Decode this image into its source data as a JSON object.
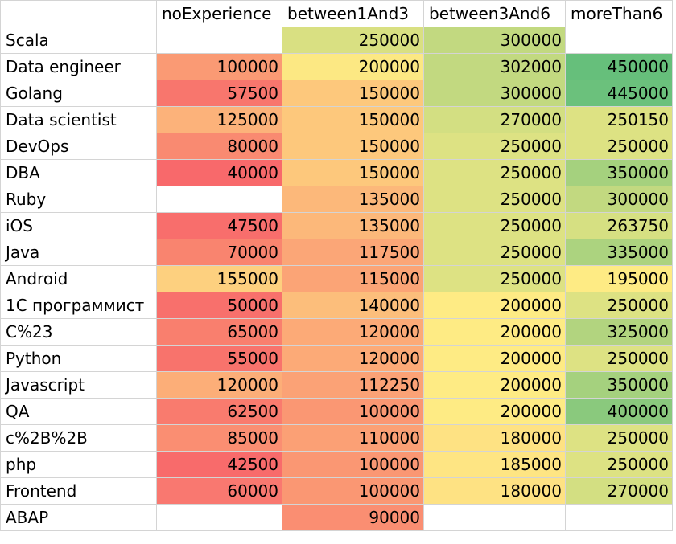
{
  "headers": [
    "",
    "noExperience",
    "between1And3",
    "between3And6",
    "moreThan6"
  ],
  "rows": [
    {
      "label": "Scala",
      "values": [
        "",
        "250000",
        "300000",
        ""
      ],
      "colors": [
        "#ffffff",
        "#d9e082",
        "#c2d980",
        "#ffffff"
      ]
    },
    {
      "label": "Data engineer",
      "values": [
        "100000",
        "200000",
        "302000",
        "450000"
      ],
      "colors": [
        "#fa9a74",
        "#fce883",
        "#c2d980",
        "#66bf7b"
      ]
    },
    {
      "label": "Golang",
      "values": [
        "57500",
        "150000",
        "300000",
        "445000"
      ],
      "colors": [
        "#f8766d",
        "#fdc87c",
        "#c2d980",
        "#6bc17c"
      ]
    },
    {
      "label": "Data scientist",
      "values": [
        "125000",
        "150000",
        "270000",
        "250150"
      ],
      "colors": [
        "#fcb27a",
        "#fdc87c",
        "#d3df82",
        "#dde283"
      ]
    },
    {
      "label": "DevOps",
      "values": [
        "80000",
        "150000",
        "250000",
        "250000"
      ],
      "colors": [
        "#f98a71",
        "#fdc87c",
        "#dde283",
        "#dde283"
      ]
    },
    {
      "label": "DBA",
      "values": [
        "40000",
        "150000",
        "250000",
        "350000"
      ],
      "colors": [
        "#f8696b",
        "#fdc87c",
        "#dde283",
        "#a5d17e"
      ]
    },
    {
      "label": "Ruby",
      "values": [
        "",
        "135000",
        "250000",
        "300000"
      ],
      "colors": [
        "#ffffff",
        "#fcb87a",
        "#dde283",
        "#c2d980"
      ]
    },
    {
      "label": "iOS",
      "values": [
        "47500",
        "135000",
        "250000",
        "263750"
      ],
      "colors": [
        "#f86e6c",
        "#fcb87a",
        "#dde283",
        "#d6e082"
      ]
    },
    {
      "label": "Java",
      "values": [
        "70000",
        "117500",
        "250000",
        "335000"
      ],
      "colors": [
        "#f9846f",
        "#fba677",
        "#dde283",
        "#acd37f"
      ]
    },
    {
      "label": "Android",
      "values": [
        "155000",
        "115000",
        "250000",
        "195000"
      ],
      "colors": [
        "#fdd07f",
        "#fba476",
        "#dde283",
        "#feeb84"
      ]
    },
    {
      "label": "1C программист",
      "values": [
        "50000",
        "140000",
        "200000",
        "250000"
      ],
      "colors": [
        "#f8706c",
        "#fcbe7b",
        "#feeb84",
        "#dde283"
      ]
    },
    {
      "label": "C%23",
      "values": [
        "65000",
        "120000",
        "200000",
        "325000"
      ],
      "colors": [
        "#f97f6e",
        "#fcaa77",
        "#feeb84",
        "#b2d47f"
      ]
    },
    {
      "label": "Python",
      "values": [
        "55000",
        "120000",
        "200000",
        "250000"
      ],
      "colors": [
        "#f8736c",
        "#fcaa77",
        "#feeb84",
        "#dde283"
      ]
    },
    {
      "label": "Javascript",
      "values": [
        "120000",
        "112250",
        "200000",
        "350000"
      ],
      "colors": [
        "#fcae78",
        "#fba276",
        "#feeb84",
        "#a5d17e"
      ]
    },
    {
      "label": "QA",
      "values": [
        "62500",
        "100000",
        "200000",
        "400000"
      ],
      "colors": [
        "#f97b6e",
        "#fa9773",
        "#feeb84",
        "#8ac97d"
      ]
    },
    {
      "label": "c%2B%2B",
      "values": [
        "85000",
        "110000",
        "180000",
        "250000"
      ],
      "colors": [
        "#fa8e72",
        "#fba075",
        "#fee283",
        "#dde283"
      ]
    },
    {
      "label": "php",
      "values": [
        "42500",
        "100000",
        "185000",
        "250000"
      ],
      "colors": [
        "#f86b6b",
        "#fa9773",
        "#fee583",
        "#dde283"
      ]
    },
    {
      "label": "Frontend",
      "values": [
        "60000",
        "100000",
        "180000",
        "270000"
      ],
      "colors": [
        "#f97870",
        "#fa9773",
        "#fee283",
        "#d3df82"
      ]
    },
    {
      "label": "ABAP",
      "values": [
        "",
        "90000",
        "",
        ""
      ],
      "colors": [
        "#ffffff",
        "#fa8e72",
        "#ffffff",
        "#ffffff"
      ]
    }
  ]
}
